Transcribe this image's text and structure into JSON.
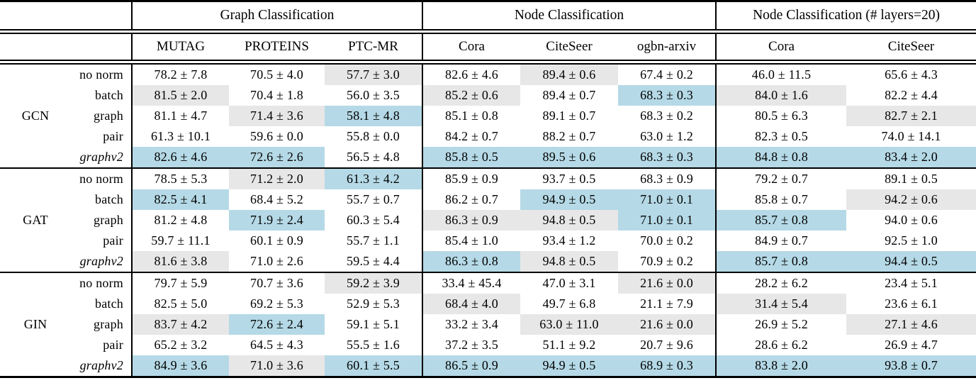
{
  "table": {
    "highlight_colors": {
      "gray": "#e7e7e7",
      "blue": "#b5d9e6"
    },
    "col_groups": [
      {
        "label": "Graph Classification",
        "columns": [
          "MUTAG",
          "PROTEINS",
          "PTC-MR"
        ]
      },
      {
        "label": "Node Classification",
        "columns": [
          "Cora",
          "CiteSeer",
          "ogbn-arxiv"
        ]
      },
      {
        "label": "Node Classification (# layers=20)",
        "columns": [
          "Cora",
          "CiteSeer"
        ]
      }
    ],
    "blocks": [
      {
        "model": "GCN",
        "rows": [
          {
            "norm": "no norm",
            "italic": false,
            "cells": [
              [
                "78.2 ± 7.8",
                ""
              ],
              [
                "70.5 ± 4.0",
                ""
              ],
              [
                "57.7 ± 3.0",
                "g"
              ],
              [
                "82.6 ± 4.6",
                ""
              ],
              [
                "89.4 ± 0.6",
                "g"
              ],
              [
                "67.4 ± 0.2",
                ""
              ],
              [
                "46.0 ± 11.5",
                ""
              ],
              [
                "65.6 ± 4.3",
                ""
              ]
            ]
          },
          {
            "norm": "batch",
            "italic": false,
            "cells": [
              [
                "81.5 ± 2.0",
                "g"
              ],
              [
                "70.4 ± 1.8",
                ""
              ],
              [
                "56.0 ± 3.5",
                ""
              ],
              [
                "85.2 ± 0.6",
                "g"
              ],
              [
                "89.4 ± 0.7",
                ""
              ],
              [
                "68.3 ± 0.3",
                "b"
              ],
              [
                "84.0 ± 1.6",
                "g"
              ],
              [
                "82.2 ± 4.4",
                ""
              ]
            ]
          },
          {
            "norm": "graph",
            "italic": false,
            "cells": [
              [
                "81.1 ± 4.7",
                ""
              ],
              [
                "71.4 ± 3.6",
                "g"
              ],
              [
                "58.1 ± 4.8",
                "b"
              ],
              [
                "85.1 ± 0.8",
                ""
              ],
              [
                "89.1 ± 0.7",
                ""
              ],
              [
                "68.3 ± 0.2",
                ""
              ],
              [
                "80.5 ± 6.3",
                ""
              ],
              [
                "82.7 ± 2.1",
                "g"
              ]
            ]
          },
          {
            "norm": "pair",
            "italic": false,
            "cells": [
              [
                "61.3 ± 10.1",
                ""
              ],
              [
                "59.6 ± 0.0",
                ""
              ],
              [
                "55.8 ± 0.0",
                ""
              ],
              [
                "84.2 ± 0.7",
                ""
              ],
              [
                "88.2 ± 0.7",
                ""
              ],
              [
                "63.0 ± 1.2",
                ""
              ],
              [
                "82.3 ± 0.5",
                ""
              ],
              [
                "74.0 ± 14.1",
                ""
              ]
            ]
          },
          {
            "norm": "graphv2",
            "italic": true,
            "cells": [
              [
                "82.6 ± 4.6",
                "b"
              ],
              [
                "72.6 ± 2.6",
                "b"
              ],
              [
                "56.5 ± 4.8",
                ""
              ],
              [
                "85.8 ± 0.5",
                "b"
              ],
              [
                "89.5 ± 0.6",
                "b"
              ],
              [
                "68.3 ± 0.3",
                "b"
              ],
              [
                "84.8 ± 0.8",
                "b"
              ],
              [
                "83.4 ± 2.0",
                "b"
              ]
            ]
          }
        ]
      },
      {
        "model": "GAT",
        "rows": [
          {
            "norm": "no norm",
            "italic": false,
            "cells": [
              [
                "78.5 ± 5.3",
                ""
              ],
              [
                "71.2 ± 2.0",
                "g"
              ],
              [
                "61.3 ± 4.2",
                "b"
              ],
              [
                "85.9 ± 0.9",
                ""
              ],
              [
                "93.7 ± 0.5",
                ""
              ],
              [
                "68.3 ± 0.9",
                ""
              ],
              [
                "79.2 ± 0.7",
                ""
              ],
              [
                "89.1 ± 0.5",
                ""
              ]
            ]
          },
          {
            "norm": "batch",
            "italic": false,
            "cells": [
              [
                "82.5 ± 4.1",
                "b"
              ],
              [
                "68.4 ± 5.2",
                ""
              ],
              [
                "55.7 ± 0.7",
                ""
              ],
              [
                "86.2 ± 0.7",
                ""
              ],
              [
                "94.9 ± 0.5",
                "b"
              ],
              [
                "71.0 ± 0.1",
                "b"
              ],
              [
                "85.8 ± 0.7",
                ""
              ],
              [
                "94.2 ± 0.6",
                "g"
              ]
            ]
          },
          {
            "norm": "graph",
            "italic": false,
            "cells": [
              [
                "81.2 ± 4.8",
                ""
              ],
              [
                "71.9 ± 2.4",
                "b"
              ],
              [
                "60.3 ± 5.4",
                ""
              ],
              [
                "86.3 ± 0.9",
                "g"
              ],
              [
                "94.8 ± 0.5",
                "g"
              ],
              [
                "71.0 ± 0.1",
                "b"
              ],
              [
                "85.7 ± 0.8",
                "b"
              ],
              [
                "94.0 ± 0.6",
                ""
              ]
            ]
          },
          {
            "norm": "pair",
            "italic": false,
            "cells": [
              [
                "59.7 ± 11.1",
                ""
              ],
              [
                "60.1 ± 0.9",
                ""
              ],
              [
                "55.7 ± 1.1",
                ""
              ],
              [
                "85.4 ± 1.0",
                ""
              ],
              [
                "93.4 ± 1.2",
                ""
              ],
              [
                "70.0 ± 0.2",
                ""
              ],
              [
                "84.9 ± 0.7",
                ""
              ],
              [
                "92.5 ± 1.0",
                ""
              ]
            ]
          },
          {
            "norm": "graphv2",
            "italic": true,
            "cells": [
              [
                "81.6 ± 3.8",
                "g"
              ],
              [
                "71.0 ± 2.6",
                ""
              ],
              [
                "59.5 ± 4.4",
                ""
              ],
              [
                "86.3 ± 0.8",
                "b"
              ],
              [
                "94.8 ± 0.5",
                "g"
              ],
              [
                "70.9 ± 0.2",
                ""
              ],
              [
                "85.7 ± 0.8",
                "b"
              ],
              [
                "94.4 ± 0.5",
                "b"
              ]
            ]
          }
        ]
      },
      {
        "model": "GIN",
        "rows": [
          {
            "norm": "no norm",
            "italic": false,
            "cells": [
              [
                "79.7 ± 5.9",
                ""
              ],
              [
                "70.7 ± 3.6",
                ""
              ],
              [
                "59.2 ± 3.9",
                "g"
              ],
              [
                "33.4 ± 45.4",
                ""
              ],
              [
                "47.0 ± 3.1",
                ""
              ],
              [
                "21.6 ± 0.0",
                "g"
              ],
              [
                "28.2 ± 6.2",
                ""
              ],
              [
                "23.4 ± 5.1",
                ""
              ]
            ]
          },
          {
            "norm": "batch",
            "italic": false,
            "cells": [
              [
                "82.5 ± 5.0",
                ""
              ],
              [
                "69.2 ± 5.3",
                ""
              ],
              [
                "52.9 ± 5.3",
                ""
              ],
              [
                "68.4 ± 4.0",
                "g"
              ],
              [
                "49.7 ± 6.8",
                ""
              ],
              [
                "21.1 ± 7.9",
                ""
              ],
              [
                "31.4 ± 5.4",
                "g"
              ],
              [
                "23.6 ± 6.1",
                ""
              ]
            ]
          },
          {
            "norm": "graph",
            "italic": false,
            "cells": [
              [
                "83.7 ± 4.2",
                "g"
              ],
              [
                "72.6 ± 2.4",
                "b"
              ],
              [
                "59.1 ± 5.1",
                ""
              ],
              [
                "33.2 ± 3.4",
                ""
              ],
              [
                "63.0 ± 11.0",
                "g"
              ],
              [
                "21.6 ± 0.0",
                "g"
              ],
              [
                "26.9 ± 5.2",
                ""
              ],
              [
                "27.1 ± 4.6",
                "g"
              ]
            ]
          },
          {
            "norm": "pair",
            "italic": false,
            "cells": [
              [
                "65.2 ± 3.2",
                ""
              ],
              [
                "64.5 ± 4.3",
                ""
              ],
              [
                "55.5 ± 1.6",
                ""
              ],
              [
                "37.2 ± 3.5",
                ""
              ],
              [
                "51.1 ± 9.2",
                ""
              ],
              [
                "20.7 ± 9.6",
                ""
              ],
              [
                "28.6 ± 6.2",
                ""
              ],
              [
                "26.9 ± 4.7",
                ""
              ]
            ]
          },
          {
            "norm": "graphv2",
            "italic": true,
            "cells": [
              [
                "84.9 ± 3.6",
                "b"
              ],
              [
                "71.0 ± 3.6",
                "g"
              ],
              [
                "60.1 ± 5.5",
                "b"
              ],
              [
                "86.5 ± 0.9",
                "b"
              ],
              [
                "94.9 ± 0.5",
                "b"
              ],
              [
                "68.9 ± 0.3",
                "b"
              ],
              [
                "83.8 ± 2.0",
                "b"
              ],
              [
                "93.8 ± 0.7",
                "b"
              ]
            ]
          }
        ]
      }
    ]
  }
}
